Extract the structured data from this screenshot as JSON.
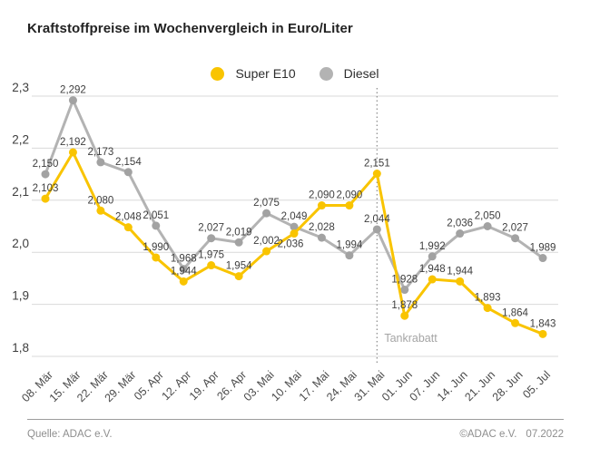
{
  "chart_data": {
    "type": "line",
    "title": "Kraftstoffpreise im Wochenvergleich in Euro/Liter",
    "unit": "Euro/Liter",
    "categories": [
      "08. Mär",
      "15. Mär",
      "22. Mär",
      "29. Mär",
      "05. Apr",
      "12. Apr",
      "19. Apr",
      "26. Apr",
      "03. Mai",
      "10. Mai",
      "17. Mai",
      "24. Mai",
      "31. Mai",
      "01. Jun",
      "07. Jun",
      "14. Jun",
      "21. Jun",
      "28. Jun",
      "05. Jul"
    ],
    "series": [
      {
        "name": "Super E10",
        "color": "#f9c400",
        "marker_color": "#f9c400",
        "values": [
          2.103,
          2.192,
          2.08,
          2.048,
          1.99,
          1.944,
          1.975,
          1.954,
          2.002,
          2.036,
          2.09,
          2.09,
          2.151,
          1.878,
          1.948,
          1.944,
          1.893,
          1.864,
          1.843
        ]
      },
      {
        "name": "Diesel",
        "color": "#b3b3b3",
        "marker_color": "#a2a2a2",
        "values": [
          2.15,
          2.292,
          2.173,
          2.154,
          2.051,
          1.968,
          2.027,
          2.019,
          2.075,
          2.049,
          2.028,
          1.994,
          2.044,
          1.928,
          1.992,
          2.036,
          2.05,
          2.027,
          1.989
        ]
      }
    ],
    "ylim": [
      1.8,
      2.3
    ],
    "yticks": [
      2.3,
      2.2,
      2.1,
      2.0,
      1.9,
      1.8
    ],
    "ytick_labels": [
      "2,3",
      "2,2",
      "2,1",
      "2,0",
      "1,9",
      "1,8"
    ],
    "grid": true,
    "legend_position": "top-center",
    "annotation": {
      "label": "Tankrabatt",
      "category": "31. Mai",
      "category_index": 12,
      "line_style": "dotted"
    },
    "colors": {
      "gridline": "#d9d9d9",
      "data_label": "#3e3e3e",
      "ytick_label": "#3e3e3e",
      "xtick_label": "#4a4a4a",
      "annotation_line": "#8a8a8a",
      "annotation_label": "#a5a5a5"
    }
  },
  "footer": {
    "source": "Quelle: ADAC e.V.",
    "copyright": "©ADAC e.V.",
    "date": "07.2022"
  }
}
